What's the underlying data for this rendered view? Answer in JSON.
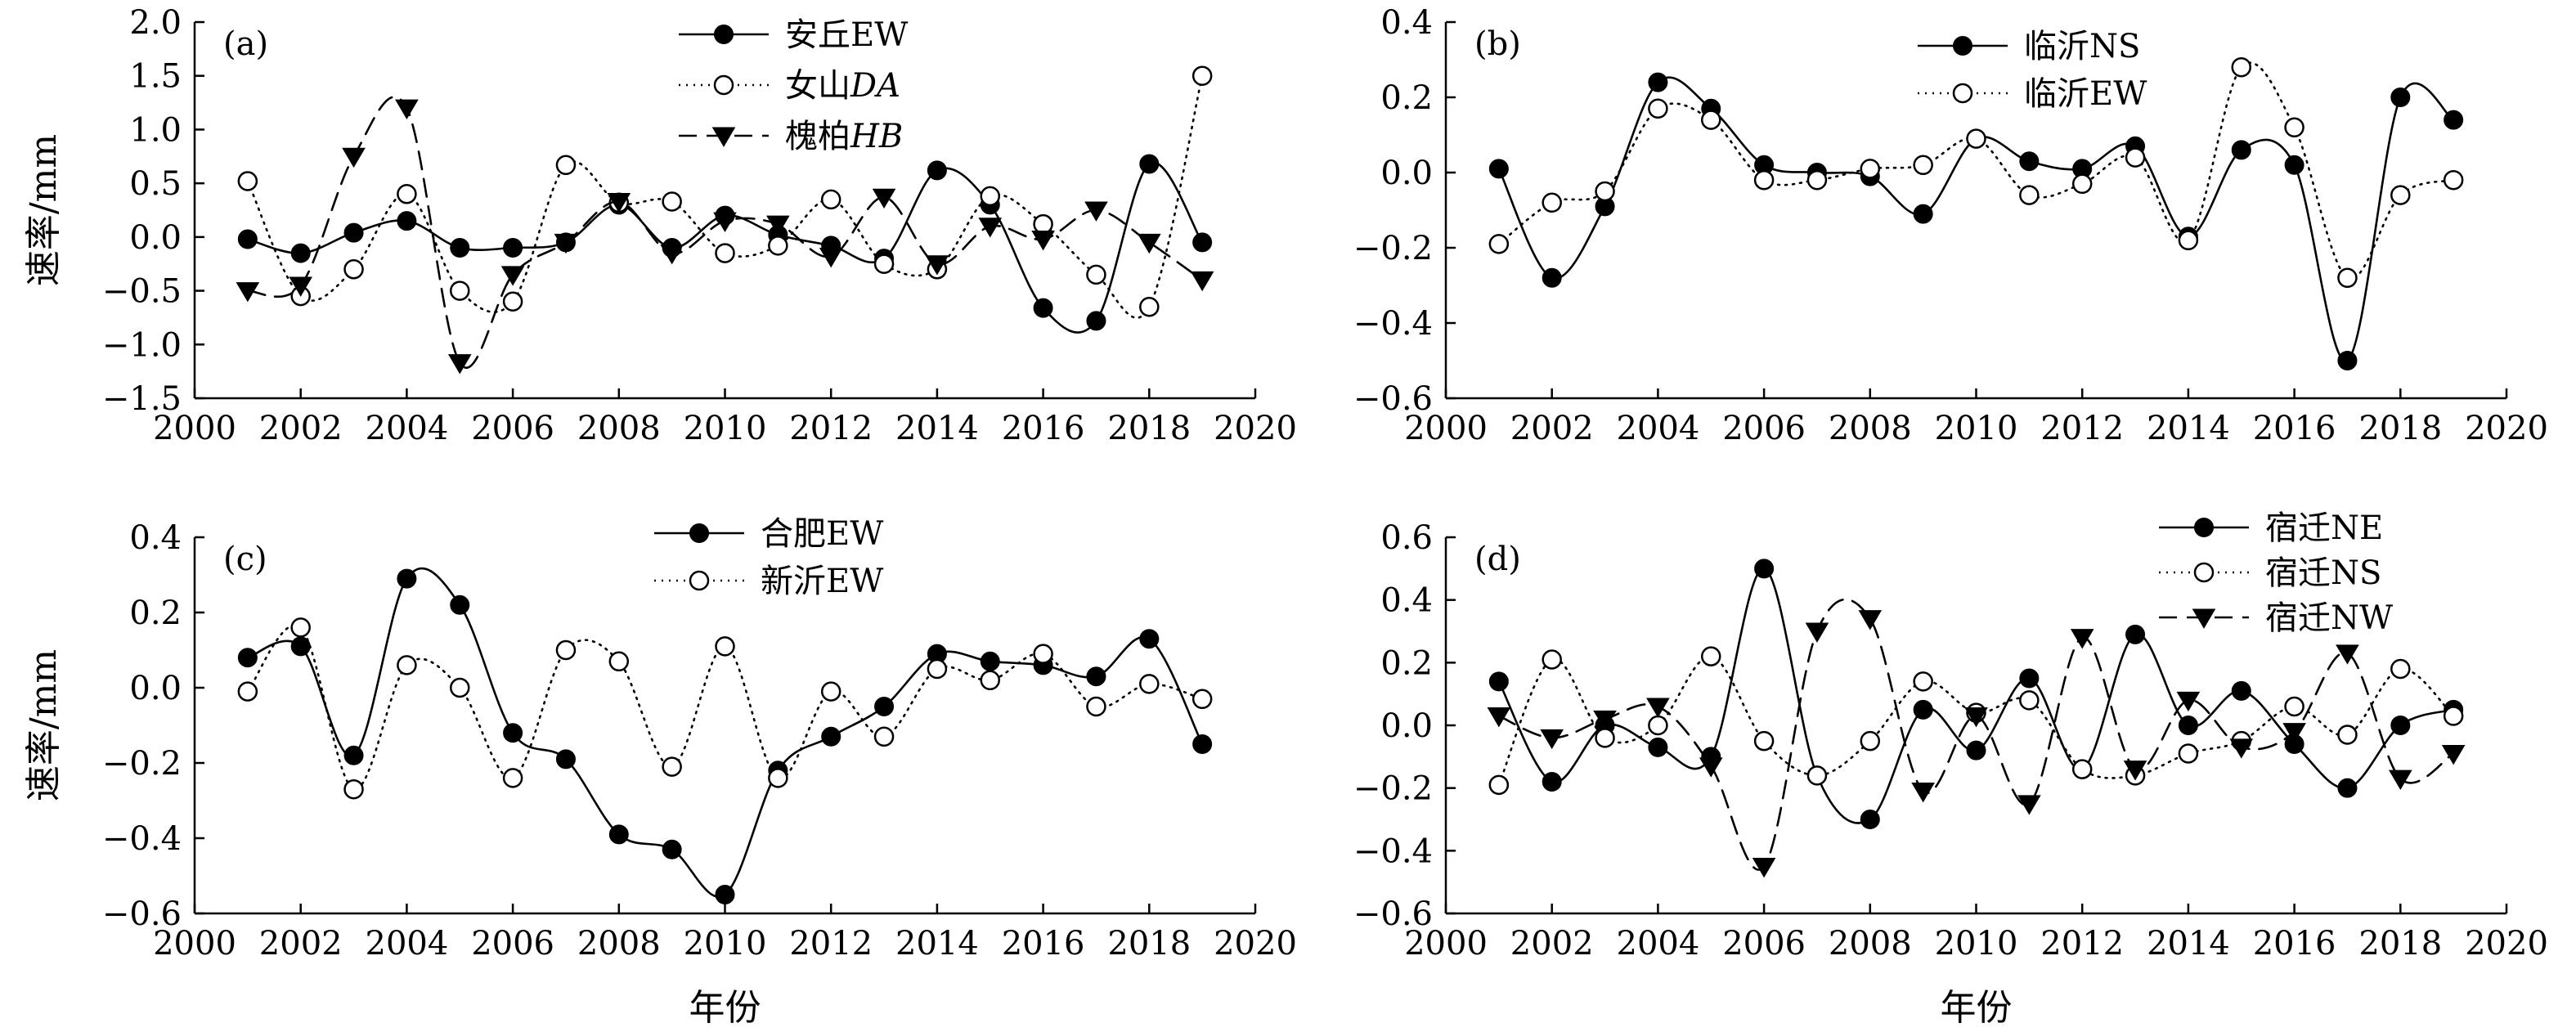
{
  "chart_data": [
    {
      "id": "a",
      "type": "line",
      "panel_label": "(a)",
      "ylabel": "速率/mm",
      "xlabel": "",
      "xlim": [
        2000,
        2020
      ],
      "ylim": [
        -1.5,
        2.0
      ],
      "xticks": [
        2000,
        2002,
        2004,
        2006,
        2008,
        2010,
        2012,
        2014,
        2016,
        2018,
        2020
      ],
      "yticks": [
        -1.5,
        -1.0,
        -0.5,
        0.0,
        0.5,
        1.0,
        1.5,
        2.0
      ],
      "ytick_labels": [
        "−1.5",
        "−1.0",
        "−0.5",
        "0.0",
        "0.5",
        "1.0",
        "1.5",
        "2.0"
      ],
      "legend_position": "top-center",
      "series": [
        {
          "name": "安丘EW",
          "name_main": "安丘",
          "name_sub": "EW",
          "sub_italic": false,
          "marker": "filled-circle",
          "line": "solid",
          "x": [
            2001,
            2002,
            2003,
            2004,
            2005,
            2006,
            2007,
            2008,
            2009,
            2010,
            2011,
            2012,
            2013,
            2014,
            2015,
            2016,
            2017,
            2018,
            2019
          ],
          "values": [
            -0.02,
            -0.15,
            0.04,
            0.15,
            -0.1,
            -0.1,
            -0.05,
            0.3,
            -0.1,
            0.2,
            0.02,
            -0.08,
            -0.2,
            0.62,
            0.3,
            -0.66,
            -0.78,
            0.68,
            -0.05
          ]
        },
        {
          "name": "女山DA",
          "name_main": "女山",
          "name_sub": "DA",
          "sub_italic": true,
          "marker": "open-circle",
          "line": "dotted",
          "x": [
            2001,
            2002,
            2003,
            2004,
            2005,
            2006,
            2007,
            2008,
            2009,
            2010,
            2011,
            2012,
            2013,
            2014,
            2015,
            2016,
            2017,
            2018,
            2019
          ],
          "values": [
            0.52,
            -0.55,
            -0.3,
            0.4,
            -0.5,
            -0.6,
            0.67,
            0.32,
            0.33,
            -0.15,
            -0.08,
            0.35,
            -0.25,
            -0.3,
            0.38,
            0.12,
            -0.35,
            -0.65,
            1.5
          ]
        },
        {
          "name": "槐柏HB",
          "name_main": "槐柏",
          "name_sub": "HB",
          "sub_italic": true,
          "marker": "filled-triangle-down",
          "line": "dashed",
          "x": [
            2001,
            2002,
            2003,
            2004,
            2005,
            2006,
            2007,
            2008,
            2009,
            2010,
            2011,
            2012,
            2013,
            2014,
            2015,
            2016,
            2017,
            2018,
            2019
          ],
          "values": [
            -0.5,
            -0.45,
            0.75,
            1.2,
            -1.17,
            -0.35,
            -0.05,
            0.33,
            -0.15,
            0.15,
            0.12,
            -0.18,
            0.37,
            -0.25,
            0.1,
            -0.02,
            0.25,
            -0.05,
            -0.4
          ]
        }
      ]
    },
    {
      "id": "b",
      "type": "line",
      "panel_label": "(b)",
      "ylabel": "",
      "xlabel": "",
      "xlim": [
        2000,
        2020
      ],
      "ylim": [
        -0.6,
        0.4
      ],
      "xticks": [
        2000,
        2002,
        2004,
        2006,
        2008,
        2010,
        2012,
        2014,
        2016,
        2018,
        2020
      ],
      "yticks": [
        -0.6,
        -0.4,
        -0.2,
        0.0,
        0.2,
        0.4
      ],
      "ytick_labels": [
        "−0.6",
        "−0.4",
        "−0.2",
        "0.0",
        "0.2",
        "0.4"
      ],
      "legend_position": "top-right",
      "series": [
        {
          "name": "临沂NS",
          "name_main": "临沂",
          "name_sub": "NS",
          "sub_italic": false,
          "marker": "filled-circle",
          "line": "solid",
          "x": [
            2001,
            2002,
            2003,
            2004,
            2005,
            2006,
            2007,
            2008,
            2009,
            2010,
            2011,
            2012,
            2013,
            2014,
            2015,
            2016,
            2017,
            2018,
            2019
          ],
          "values": [
            0.01,
            -0.28,
            -0.09,
            0.24,
            0.17,
            0.02,
            0.0,
            -0.01,
            -0.11,
            0.09,
            0.03,
            0.01,
            0.07,
            -0.17,
            0.06,
            0.02,
            -0.5,
            0.2,
            0.14
          ]
        },
        {
          "name": "临沂EW",
          "name_main": "临沂",
          "name_sub": "EW",
          "sub_italic": false,
          "marker": "open-circle",
          "line": "dotted",
          "x": [
            2001,
            2002,
            2003,
            2004,
            2005,
            2006,
            2007,
            2008,
            2009,
            2010,
            2011,
            2012,
            2013,
            2014,
            2015,
            2016,
            2017,
            2018,
            2019
          ],
          "values": [
            -0.19,
            -0.08,
            -0.05,
            0.17,
            0.14,
            -0.02,
            -0.02,
            0.01,
            0.02,
            0.09,
            -0.06,
            -0.03,
            0.04,
            -0.18,
            0.28,
            0.12,
            -0.28,
            -0.06,
            -0.02
          ]
        }
      ]
    },
    {
      "id": "c",
      "type": "line",
      "panel_label": "(c)",
      "ylabel": "速率/mm",
      "xlabel": "年份",
      "xlim": [
        2000,
        2020
      ],
      "ylim": [
        -0.6,
        0.4
      ],
      "xticks": [
        2000,
        2002,
        2004,
        2006,
        2008,
        2010,
        2012,
        2014,
        2016,
        2018,
        2020
      ],
      "yticks": [
        -0.6,
        -0.4,
        -0.2,
        0.0,
        0.2,
        0.4
      ],
      "ytick_labels": [
        "−0.6",
        "−0.4",
        "−0.2",
        "0.0",
        "0.2",
        "0.4"
      ],
      "legend_position": "top-center",
      "series": [
        {
          "name": "合肥EW",
          "name_main": "合肥",
          "name_sub": "EW",
          "sub_italic": false,
          "marker": "filled-circle",
          "line": "solid",
          "x": [
            2001,
            2002,
            2003,
            2004,
            2005,
            2006,
            2007,
            2008,
            2009,
            2010,
            2011,
            2012,
            2013,
            2014,
            2015,
            2016,
            2017,
            2018,
            2019
          ],
          "values": [
            0.08,
            0.11,
            -0.18,
            0.29,
            0.22,
            -0.12,
            -0.19,
            -0.39,
            -0.43,
            -0.55,
            -0.22,
            -0.13,
            -0.05,
            0.09,
            0.07,
            0.06,
            0.03,
            0.13,
            -0.15
          ]
        },
        {
          "name": "新沂EW",
          "name_main": "新沂",
          "name_sub": "EW",
          "sub_italic": false,
          "marker": "open-circle",
          "line": "dotted",
          "x": [
            2001,
            2002,
            2003,
            2004,
            2005,
            2006,
            2007,
            2008,
            2009,
            2010,
            2011,
            2012,
            2013,
            2014,
            2015,
            2016,
            2017,
            2018,
            2019
          ],
          "values": [
            -0.01,
            0.16,
            -0.27,
            0.06,
            0.0,
            -0.24,
            0.1,
            0.07,
            -0.21,
            0.11,
            -0.24,
            -0.01,
            -0.13,
            0.05,
            0.02,
            0.09,
            -0.05,
            0.01,
            -0.03
          ]
        }
      ]
    },
    {
      "id": "d",
      "type": "line",
      "panel_label": "(d)",
      "ylabel": "",
      "xlabel": "年份",
      "xlim": [
        2000,
        2020
      ],
      "ylim": [
        -0.6,
        0.6
      ],
      "xticks": [
        2000,
        2002,
        2004,
        2006,
        2008,
        2010,
        2012,
        2014,
        2016,
        2018,
        2020
      ],
      "yticks": [
        -0.6,
        -0.4,
        -0.2,
        0.0,
        0.2,
        0.4,
        0.6
      ],
      "ytick_labels": [
        "−0.6",
        "−0.4",
        "−0.2",
        "0.0",
        "0.2",
        "0.4",
        "0.6"
      ],
      "legend_position": "top-right",
      "series": [
        {
          "name": "宿迁NE",
          "name_main": "宿迁",
          "name_sub": "NE",
          "sub_italic": false,
          "marker": "filled-circle",
          "line": "solid",
          "x": [
            2001,
            2002,
            2003,
            2004,
            2005,
            2006,
            2007,
            2008,
            2009,
            2010,
            2011,
            2012,
            2013,
            2014,
            2015,
            2016,
            2017,
            2018,
            2019
          ],
          "values": [
            0.14,
            -0.18,
            0.0,
            -0.07,
            -0.1,
            0.5,
            -0.16,
            -0.3,
            0.05,
            -0.08,
            0.15,
            -0.14,
            0.29,
            0.0,
            0.11,
            -0.06,
            -0.2,
            0.0,
            0.05
          ]
        },
        {
          "name": "宿迁NS",
          "name_main": "宿迁",
          "name_sub": "NS",
          "sub_italic": false,
          "marker": "open-circle",
          "line": "dotted",
          "x": [
            2001,
            2002,
            2003,
            2004,
            2005,
            2006,
            2007,
            2008,
            2009,
            2010,
            2011,
            2012,
            2013,
            2014,
            2015,
            2016,
            2017,
            2018,
            2019
          ],
          "values": [
            -0.19,
            0.21,
            -0.04,
            0.0,
            0.22,
            -0.05,
            -0.16,
            -0.05,
            0.14,
            0.04,
            0.08,
            -0.14,
            -0.16,
            -0.09,
            -0.05,
            0.06,
            -0.03,
            0.18,
            0.03
          ]
        },
        {
          "name": "宿迁NW",
          "name_main": "宿迁",
          "name_sub": "NW",
          "sub_italic": false,
          "marker": "filled-triangle-down",
          "line": "dashed",
          "x": [
            2001,
            2002,
            2003,
            2004,
            2005,
            2006,
            2007,
            2008,
            2009,
            2010,
            2011,
            2012,
            2013,
            2014,
            2015,
            2016,
            2017,
            2018,
            2019
          ],
          "values": [
            0.03,
            -0.04,
            0.02,
            0.06,
            -0.13,
            -0.45,
            0.3,
            0.34,
            -0.21,
            0.03,
            -0.25,
            0.28,
            -0.14,
            0.08,
            -0.07,
            -0.02,
            0.23,
            -0.17,
            -0.09
          ]
        }
      ]
    }
  ]
}
